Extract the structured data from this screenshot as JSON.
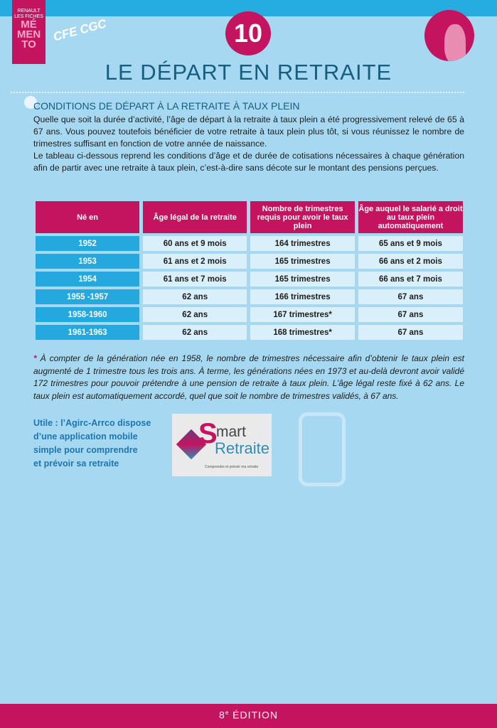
{
  "header": {
    "brand_line1": "RENAULT",
    "brand_line2": "LES FICHES",
    "memo_lines": [
      "MÉ",
      "MEN",
      "TO"
    ],
    "union_logo_text": "CFE CGC",
    "number": "10",
    "title": "LE DÉPART EN RETRAITE"
  },
  "section": {
    "heading": "CONDITIONS DE DÉPART À LA RETRAITE À TAUX PLEIN",
    "paragraph1": "Quelle que soit la durée d’activité, l’âge de départ à la retraite à taux plein a été progressivement relevé de 65 à 67 ans. Vous pouvez toutefois bénéficier de votre retraite à taux plein plus tôt, si vous réunissez le nombre de trimestres suffisant en fonction de votre année de naissance.",
    "paragraph2": "Le tableau ci-dessous reprend les conditions d’âge et de durée de cotisations nécessaires à chaque génération afin de partir avec une retraite à taux plein, c’est-à-dire sans décote sur le montant des pensions perçues."
  },
  "table": {
    "headers": [
      "Né en",
      "Âge légal de la retraite",
      "Nombre de trimestres requis pour avoir le taux plein",
      "Âge auquel le salarié a droit au taux plein automatiquement"
    ],
    "rows": [
      [
        "1952",
        "60 ans et 9 mois",
        "164 trimestres",
        "65 ans et 9 mois"
      ],
      [
        "1953",
        "61 ans et 2 mois",
        "165 trimestres",
        "66 ans et 2 mois"
      ],
      [
        "1954",
        "61 ans et 7 mois",
        "165 trimestres",
        "66 ans et 7 mois"
      ],
      [
        "1955 -1957",
        "62 ans",
        "166 trimestres",
        "67 ans"
      ],
      [
        "1958-1960",
        "62 ans",
        "167 trimestres*",
        "67 ans"
      ],
      [
        "1961-1963",
        "62 ans",
        "168 trimestres*",
        "67 ans"
      ]
    ]
  },
  "note": {
    "star": "*",
    "text": "À compter de la génération née en 1958, le nombre de trimestres nécessaire afin d’obtenir le taux plein est augmenté de 1 trimestre tous les trois ans. À terme, les générations nées en 1973 et au-delà devront avoir validé 172 trimestres pour pouvoir prétendre à une pension de retraite à taux plein. L’âge légal reste fixé à 62 ans. Le taux plein est automatiquement accordé, quel que soit le nombre de trimestres validés, à 67 ans."
  },
  "tip": {
    "lines": [
      "Utile : l’Agirc-Arrco dispose",
      "d’une application mobile",
      "simple pour comprendre",
      "et prévoir sa retraite"
    ]
  },
  "app_logo": {
    "s": "S",
    "mart": "mart",
    "r": "Retraite",
    "tagline": "Comprendre et prévoir ma retraite"
  },
  "footer": {
    "edition_num": "8",
    "edition_sup": "e",
    "edition_label": " ÉDITION"
  },
  "colors": {
    "accent": "#c4135f",
    "blue": "#25ace0",
    "background": "#a7d8f1",
    "title": "#165d7e"
  }
}
